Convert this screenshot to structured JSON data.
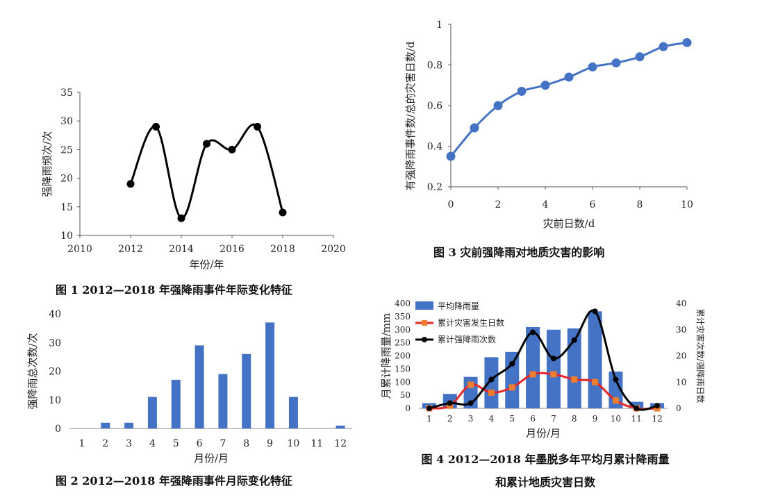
{
  "chart_data": [
    {
      "type": "line",
      "id": "fig1",
      "caption": "图 1    2012—2018 年强降雨事件年际变化特征",
      "xlabel": "年份/年",
      "ylabel": "强降雨频次/次",
      "xlim": [
        2010,
        2020
      ],
      "ylim": [
        10,
        35
      ],
      "xticks": [
        2010,
        2012,
        2014,
        2016,
        2018,
        2020
      ],
      "yticks": [
        10,
        15,
        20,
        25,
        30,
        35
      ],
      "x": [
        2012,
        2013,
        2014,
        2015,
        2016,
        2017,
        2018
      ],
      "y": [
        19,
        29,
        13,
        26,
        25,
        29,
        14
      ],
      "color": "#000000",
      "smooth": true
    },
    {
      "type": "line",
      "id": "fig3",
      "caption": "图 3    灾前强降雨对地质灾害的影响",
      "xlabel": "灾前日数/d",
      "ylabel": "有强降雨事件数/总的灾害日数/d",
      "xlim": [
        0,
        10
      ],
      "ylim": [
        0.2,
        1
      ],
      "xticks": [
        0,
        2,
        4,
        6,
        8,
        10
      ],
      "yticks": [
        0.2,
        0.4,
        0.6,
        0.8,
        1
      ],
      "ytick_labels": [
        "0.2",
        "0.4",
        "0.6",
        "0.8",
        "1"
      ],
      "x": [
        0,
        1,
        2,
        3,
        4,
        5,
        6,
        7,
        8,
        9,
        10
      ],
      "y": [
        0.35,
        0.49,
        0.6,
        0.67,
        0.7,
        0.74,
        0.79,
        0.81,
        0.84,
        0.89,
        0.91
      ],
      "color": "#4472c4",
      "smooth": true
    },
    {
      "type": "bar",
      "id": "fig2",
      "caption": "图 2    2012—2018 年强降雨事件月际变化特征",
      "xlabel": "月份/月",
      "ylabel": "强降雨总次数/次",
      "categories": [
        "1",
        "2",
        "3",
        "4",
        "5",
        "6",
        "7",
        "8",
        "9",
        "10",
        "11",
        "12"
      ],
      "values": [
        0,
        2,
        2,
        11,
        17,
        29,
        19,
        26,
        37,
        11,
        0,
        1
      ],
      "ylim": [
        0,
        40
      ],
      "yticks": [
        0,
        10,
        20,
        30,
        40
      ],
      "color": "#4472c4"
    },
    {
      "type": "bar",
      "id": "fig4",
      "caption_line1": "图 4    2012—2018 年墨脱多年平均月累计降雨量",
      "caption_line2": "和累计地质灾害日数",
      "xlabel": "月份/月",
      "ylabel_left": "月累计降雨量/mm",
      "ylabel_right": "累计灾害次数/强降雨日数",
      "categories": [
        "1",
        "2",
        "3",
        "4",
        "5",
        "6",
        "7",
        "8",
        "9",
        "10",
        "11",
        "12"
      ],
      "ylim_left": [
        0,
        400
      ],
      "yticks_left": [
        0,
        50,
        100,
        150,
        200,
        250,
        300,
        350,
        400
      ],
      "ylim_right": [
        0,
        40
      ],
      "yticks_right": [
        0,
        10,
        20,
        30,
        40
      ],
      "legend_position": "top-left",
      "series": [
        {
          "name": "平均降雨量",
          "kind": "bar",
          "axis": "left",
          "color": "#4472c4",
          "values": [
            20,
            55,
            120,
            195,
            215,
            310,
            300,
            305,
            370,
            140,
            25,
            20
          ]
        },
        {
          "name": "累计灾害发生日数",
          "kind": "line",
          "axis": "right",
          "color": "#e8262a",
          "marker_color": "#ed7d31",
          "values": [
            0,
            1,
            9,
            6,
            8,
            13,
            13,
            11,
            10,
            3,
            0,
            0
          ]
        },
        {
          "name": "累计强降雨次数",
          "kind": "line",
          "axis": "right",
          "color": "#000000",
          "values": [
            0,
            2,
            2,
            11,
            17,
            29,
            19,
            26,
            37,
            11,
            0,
            1
          ]
        }
      ]
    }
  ]
}
